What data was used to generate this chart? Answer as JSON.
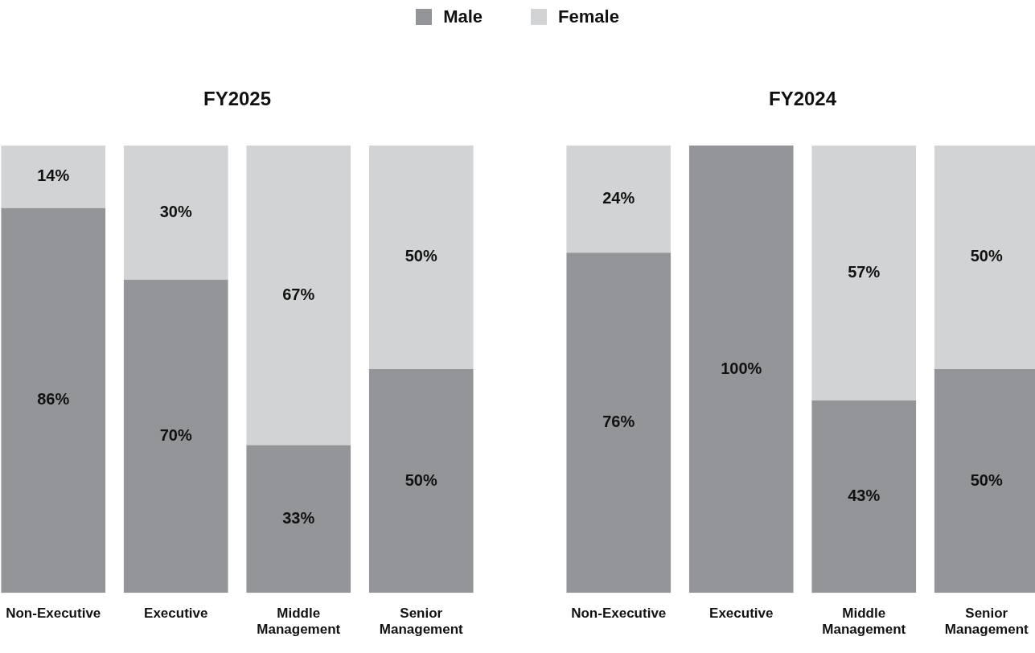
{
  "chart_data": [
    {
      "type": "bar",
      "title": "FY2025",
      "categories": [
        "Non-Executive",
        "Executive",
        "Middle Management",
        "Senior Management"
      ],
      "stacked": true,
      "legend": "top",
      "tick_labels": "x",
      "grid": false,
      "series": [
        {
          "name": "Male",
          "color": "#939598",
          "values": [
            86,
            70,
            33,
            50
          ],
          "value_labels": [
            "86%",
            "70%",
            "33%",
            "50%"
          ]
        },
        {
          "name": "Female",
          "color": "#d1d3d4",
          "values": [
            14,
            30,
            67,
            50
          ],
          "value_labels": [
            "14%",
            "30%",
            "67%",
            "50%"
          ]
        }
      ]
    },
    {
      "type": "bar",
      "title": "FY2024",
      "categories": [
        "Non-Executive",
        "Executive",
        "Middle Management",
        "Senior Management"
      ],
      "stacked": true,
      "tick_labels": "x",
      "grid": false,
      "series": [
        {
          "color": "#939598",
          "values": [
            76,
            100,
            43,
            50
          ],
          "value_labels": [
            "76%",
            "100%",
            "43%",
            "50%"
          ]
        },
        {
          "color": "#d1d3d4",
          "values": [
            24,
            0,
            57,
            50
          ],
          "value_labels": [
            "24%",
            null,
            "57%",
            "50%"
          ]
        }
      ]
    }
  ]
}
